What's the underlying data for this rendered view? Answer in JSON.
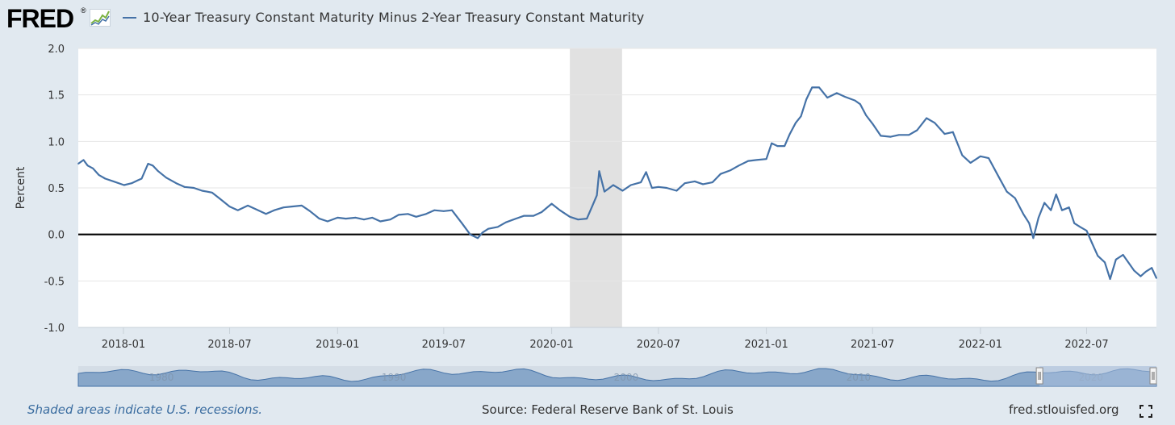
{
  "header": {
    "logo_text": "FRED",
    "logo_mark": "®",
    "logo_icon": "line-graph-icon",
    "series_title": "10-Year Treasury Constant Maturity Minus 2-Year Treasury Constant Maturity"
  },
  "footer": {
    "note": "Shaded areas indicate U.S. recessions.",
    "source": "Source: Federal Reserve Bank of St. Louis",
    "site": "fred.stlouisfed.org",
    "fullscreen_icon": "fullscreen-icon"
  },
  "colors": {
    "background": "#e1e9f0",
    "plot_background": "#ffffff",
    "series": "#4572a7",
    "recession_band": "#e1e1e1",
    "zero_line": "#000000",
    "note_text": "#3b6da0"
  },
  "chart_data": {
    "type": "line",
    "ylabel": "Percent",
    "xlabel": "",
    "ylim": [
      -1.0,
      2.0
    ],
    "xlim": [
      "2017-10-16",
      "2022-10-28"
    ],
    "y_ticks": [
      "2.0",
      "1.5",
      "1.0",
      "0.5",
      "0.0",
      "-0.5",
      "-1.0"
    ],
    "x_ticks": [
      "2018-01",
      "2018-07",
      "2019-01",
      "2019-07",
      "2020-01",
      "2020-07",
      "2021-01",
      "2021-07",
      "2022-01",
      "2022-07"
    ],
    "grid": true,
    "legend": "top-left",
    "zero_line": true,
    "recession_shading": [
      {
        "start": "2020-02-01",
        "end": "2020-04-30"
      }
    ],
    "navigator": {
      "tick_labels": [
        "1980",
        "1990",
        "2000",
        "2010",
        "2020"
      ],
      "selected_start": "2017-10-16",
      "selected_end": "2022-10-28"
    },
    "series": [
      {
        "name": "10-Year Treasury Constant Maturity Minus 2-Year Treasury Constant Maturity",
        "points": [
          [
            "2017-10-16",
            0.76
          ],
          [
            "2017-10-25",
            0.8
          ],
          [
            "2017-11-01",
            0.74
          ],
          [
            "2017-11-10",
            0.71
          ],
          [
            "2017-11-20",
            0.64
          ],
          [
            "2017-12-01",
            0.6
          ],
          [
            "2017-12-15",
            0.57
          ],
          [
            "2018-01-02",
            0.53
          ],
          [
            "2018-01-15",
            0.55
          ],
          [
            "2018-01-25",
            0.58
          ],
          [
            "2018-02-01",
            0.6
          ],
          [
            "2018-02-12",
            0.76
          ],
          [
            "2018-02-20",
            0.74
          ],
          [
            "2018-03-01",
            0.68
          ],
          [
            "2018-03-15",
            0.61
          ],
          [
            "2018-04-01",
            0.55
          ],
          [
            "2018-04-15",
            0.51
          ],
          [
            "2018-05-01",
            0.5
          ],
          [
            "2018-05-15",
            0.47
          ],
          [
            "2018-06-01",
            0.45
          ],
          [
            "2018-06-15",
            0.38
          ],
          [
            "2018-07-01",
            0.3
          ],
          [
            "2018-07-15",
            0.26
          ],
          [
            "2018-08-01",
            0.31
          ],
          [
            "2018-08-15",
            0.27
          ],
          [
            "2018-09-01",
            0.22
          ],
          [
            "2018-09-15",
            0.26
          ],
          [
            "2018-10-01",
            0.29
          ],
          [
            "2018-10-15",
            0.3
          ],
          [
            "2018-11-01",
            0.31
          ],
          [
            "2018-11-15",
            0.25
          ],
          [
            "2018-12-01",
            0.17
          ],
          [
            "2018-12-15",
            0.14
          ],
          [
            "2019-01-01",
            0.18
          ],
          [
            "2019-01-15",
            0.17
          ],
          [
            "2019-02-01",
            0.18
          ],
          [
            "2019-02-15",
            0.16
          ],
          [
            "2019-03-01",
            0.18
          ],
          [
            "2019-03-15",
            0.14
          ],
          [
            "2019-04-01",
            0.16
          ],
          [
            "2019-04-15",
            0.21
          ],
          [
            "2019-05-01",
            0.22
          ],
          [
            "2019-05-15",
            0.19
          ],
          [
            "2019-06-01",
            0.22
          ],
          [
            "2019-06-15",
            0.26
          ],
          [
            "2019-07-01",
            0.25
          ],
          [
            "2019-07-15",
            0.26
          ],
          [
            "2019-08-01",
            0.12
          ],
          [
            "2019-08-15",
            0.0
          ],
          [
            "2019-08-28",
            -0.04
          ],
          [
            "2019-09-05",
            0.02
          ],
          [
            "2019-09-15",
            0.06
          ],
          [
            "2019-10-01",
            0.08
          ],
          [
            "2019-10-15",
            0.13
          ],
          [
            "2019-11-01",
            0.17
          ],
          [
            "2019-11-15",
            0.2
          ],
          [
            "2019-12-01",
            0.2
          ],
          [
            "2019-12-15",
            0.24
          ],
          [
            "2020-01-01",
            0.33
          ],
          [
            "2020-01-15",
            0.26
          ],
          [
            "2020-02-01",
            0.19
          ],
          [
            "2020-02-15",
            0.16
          ],
          [
            "2020-03-01",
            0.17
          ],
          [
            "2020-03-10",
            0.3
          ],
          [
            "2020-03-18",
            0.42
          ],
          [
            "2020-03-22",
            0.68
          ],
          [
            "2020-03-31",
            0.46
          ],
          [
            "2020-04-15",
            0.53
          ],
          [
            "2020-05-01",
            0.47
          ],
          [
            "2020-05-15",
            0.53
          ],
          [
            "2020-06-01",
            0.56
          ],
          [
            "2020-06-10",
            0.67
          ],
          [
            "2020-06-20",
            0.5
          ],
          [
            "2020-07-01",
            0.51
          ],
          [
            "2020-07-15",
            0.5
          ],
          [
            "2020-08-01",
            0.47
          ],
          [
            "2020-08-15",
            0.55
          ],
          [
            "2020-09-01",
            0.57
          ],
          [
            "2020-09-15",
            0.54
          ],
          [
            "2020-10-01",
            0.56
          ],
          [
            "2020-10-15",
            0.65
          ],
          [
            "2020-11-01",
            0.69
          ],
          [
            "2020-11-15",
            0.74
          ],
          [
            "2020-12-01",
            0.79
          ],
          [
            "2020-12-15",
            0.8
          ],
          [
            "2021-01-01",
            0.81
          ],
          [
            "2021-01-10",
            0.98
          ],
          [
            "2021-01-20",
            0.95
          ],
          [
            "2021-02-01",
            0.95
          ],
          [
            "2021-02-10",
            1.08
          ],
          [
            "2021-02-20",
            1.2
          ],
          [
            "2021-03-01",
            1.27
          ],
          [
            "2021-03-10",
            1.45
          ],
          [
            "2021-03-20",
            1.58
          ],
          [
            "2021-04-01",
            1.58
          ],
          [
            "2021-04-15",
            1.47
          ],
          [
            "2021-05-01",
            1.52
          ],
          [
            "2021-05-15",
            1.48
          ],
          [
            "2021-06-01",
            1.44
          ],
          [
            "2021-06-10",
            1.4
          ],
          [
            "2021-06-20",
            1.28
          ],
          [
            "2021-07-01",
            1.19
          ],
          [
            "2021-07-15",
            1.06
          ],
          [
            "2021-08-01",
            1.05
          ],
          [
            "2021-08-15",
            1.07
          ],
          [
            "2021-09-01",
            1.07
          ],
          [
            "2021-09-15",
            1.12
          ],
          [
            "2021-10-01",
            1.25
          ],
          [
            "2021-10-15",
            1.2
          ],
          [
            "2021-11-01",
            1.08
          ],
          [
            "2021-11-15",
            1.1
          ],
          [
            "2021-12-01",
            0.85
          ],
          [
            "2021-12-15",
            0.77
          ],
          [
            "2022-01-01",
            0.84
          ],
          [
            "2022-01-15",
            0.82
          ],
          [
            "2022-02-01",
            0.62
          ],
          [
            "2022-02-15",
            0.46
          ],
          [
            "2022-03-01",
            0.39
          ],
          [
            "2022-03-15",
            0.22
          ],
          [
            "2022-03-25",
            0.12
          ],
          [
            "2022-04-01",
            -0.04
          ],
          [
            "2022-04-10",
            0.18
          ],
          [
            "2022-04-20",
            0.34
          ],
          [
            "2022-05-01",
            0.26
          ],
          [
            "2022-05-10",
            0.43
          ],
          [
            "2022-05-20",
            0.26
          ],
          [
            "2022-06-01",
            0.29
          ],
          [
            "2022-06-10",
            0.12
          ],
          [
            "2022-06-20",
            0.08
          ],
          [
            "2022-07-01",
            0.04
          ],
          [
            "2022-07-10",
            -0.09
          ],
          [
            "2022-07-20",
            -0.23
          ],
          [
            "2022-08-01",
            -0.3
          ],
          [
            "2022-08-10",
            -0.48
          ],
          [
            "2022-08-20",
            -0.27
          ],
          [
            "2022-09-01",
            -0.22
          ],
          [
            "2022-09-10",
            -0.3
          ],
          [
            "2022-09-20",
            -0.39
          ],
          [
            "2022-10-01",
            -0.45
          ],
          [
            "2022-10-10",
            -0.4
          ],
          [
            "2022-10-20",
            -0.36
          ],
          [
            "2022-10-28",
            -0.47
          ]
        ]
      }
    ]
  }
}
